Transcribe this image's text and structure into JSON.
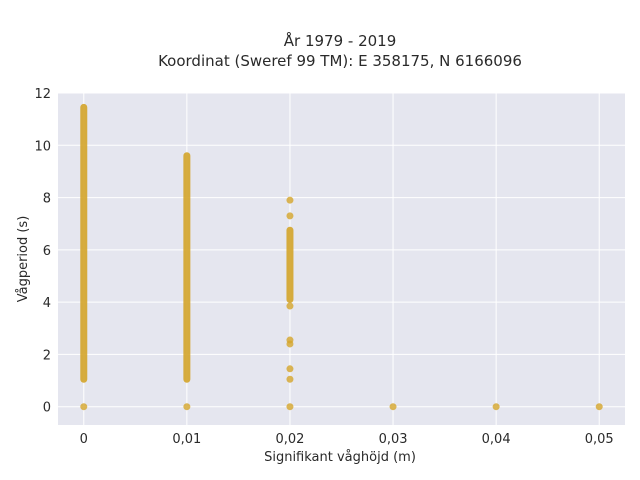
{
  "chart_data": {
    "type": "scatter",
    "title_line1": "År 1979 - 2019",
    "title_line2": "Koordinat (Sweref 99 TM): E 358175, N 6166096",
    "xlabel": "Signifikant våghöjd (m)",
    "ylabel": "Vågperiod (s)",
    "xlim": [
      -0.0025,
      0.0525
    ],
    "ylim": [
      -0.7,
      12
    ],
    "x_ticks": [
      {
        "value": 0,
        "label": "0"
      },
      {
        "value": 0.01,
        "label": "0,01"
      },
      {
        "value": 0.02,
        "label": "0,02"
      },
      {
        "value": 0.03,
        "label": "0,03"
      },
      {
        "value": 0.04,
        "label": "0,04"
      },
      {
        "value": 0.05,
        "label": "0,05"
      }
    ],
    "y_ticks": [
      {
        "value": 0,
        "label": "0"
      },
      {
        "value": 2,
        "label": "2"
      },
      {
        "value": 4,
        "label": "4"
      },
      {
        "value": 6,
        "label": "6"
      },
      {
        "value": 8,
        "label": "8"
      },
      {
        "value": 10,
        "label": "10"
      },
      {
        "value": 12,
        "label": "12"
      }
    ],
    "grid": true,
    "colors": {
      "marker": "#d4a52a",
      "plot_background": "#e5e6ef",
      "grid": "#ffffff"
    },
    "series": [
      {
        "values": [
          {
            "x": 0,
            "y_range": [
              1.05,
              11.45
            ]
          },
          {
            "x": 0,
            "y": 0
          },
          {
            "x": 0.01,
            "y_range": [
              1.05,
              9.6
            ]
          },
          {
            "x": 0.01,
            "y": 0
          },
          {
            "x": 0.02,
            "y_range": [
              4.1,
              6.75
            ]
          },
          {
            "x": 0.02,
            "y": 7.9
          },
          {
            "x": 0.02,
            "y": 7.3
          },
          {
            "x": 0.02,
            "y": 3.85
          },
          {
            "x": 0.02,
            "y": 2.55
          },
          {
            "x": 0.02,
            "y": 2.4
          },
          {
            "x": 0.02,
            "y": 1.45
          },
          {
            "x": 0.02,
            "y": 1.05
          },
          {
            "x": 0.02,
            "y": 0
          },
          {
            "x": 0.03,
            "y": 0
          },
          {
            "x": 0.04,
            "y": 0
          },
          {
            "x": 0.05,
            "y": 0
          }
        ]
      }
    ]
  }
}
